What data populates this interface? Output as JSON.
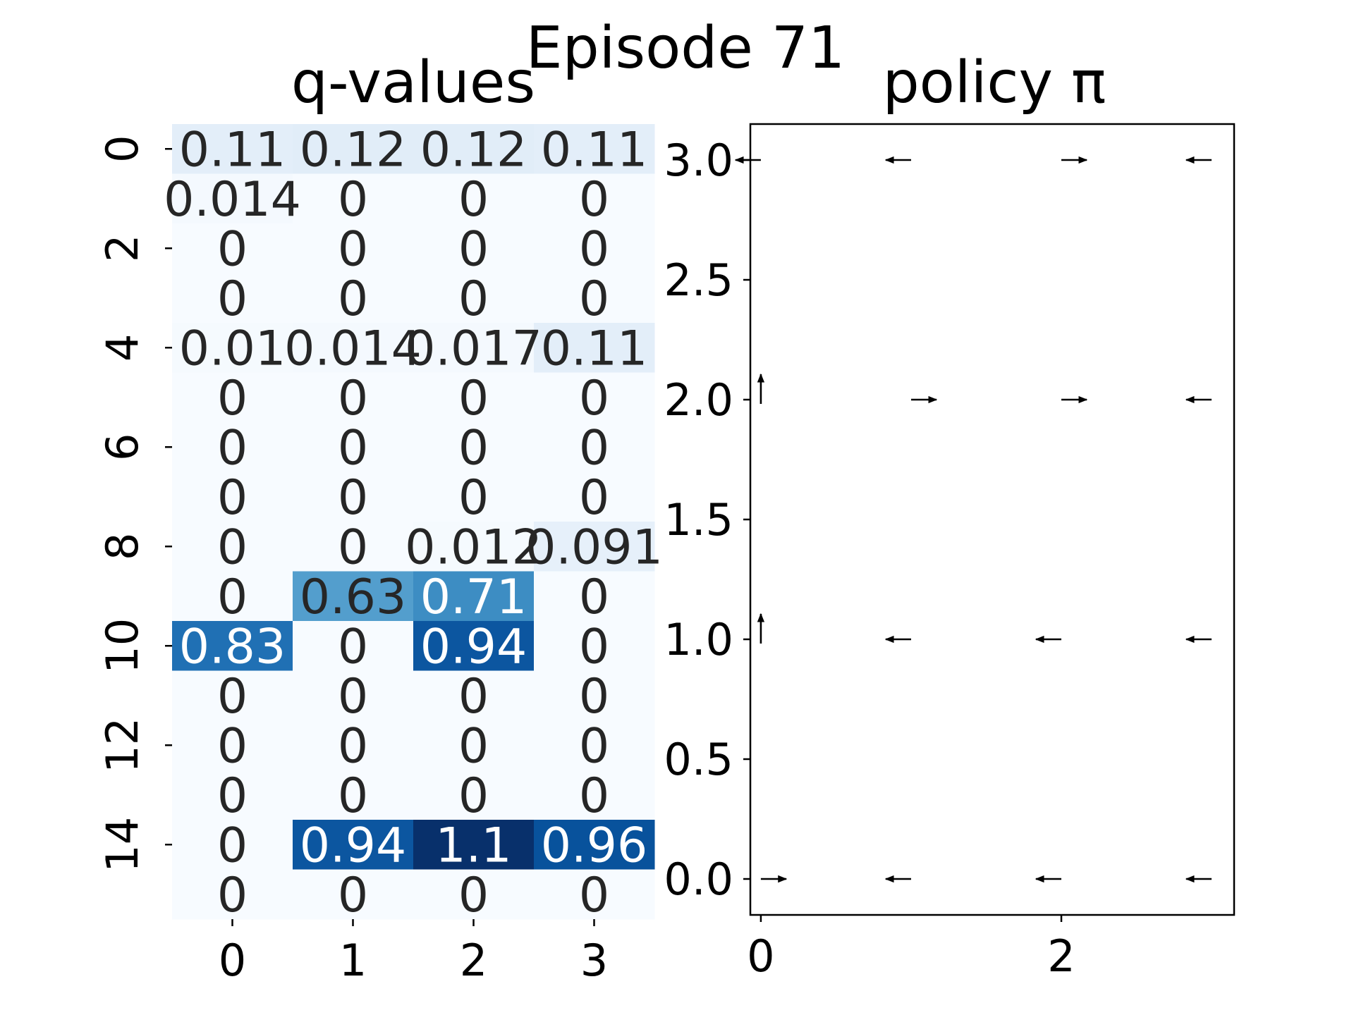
{
  "figure": {
    "suptitle": "Episode 71"
  },
  "chart_data": [
    {
      "type": "heatmap",
      "title": "q-values",
      "x_ticks": [
        "0",
        "1",
        "2",
        "3"
      ],
      "y_ticks": [
        "0",
        "2",
        "4",
        "6",
        "8",
        "10",
        "12",
        "14"
      ],
      "colormap": "Blues",
      "vmin": 0,
      "vmax": 1.1,
      "values": [
        [
          0.11,
          0.12,
          0.12,
          0.11
        ],
        [
          0.014,
          0,
          0,
          0
        ],
        [
          0,
          0,
          0,
          0
        ],
        [
          0,
          0,
          0,
          0
        ],
        [
          0.01,
          0.014,
          0.017,
          0.11
        ],
        [
          0,
          0,
          0,
          0
        ],
        [
          0,
          0,
          0,
          0
        ],
        [
          0,
          0,
          0,
          0
        ],
        [
          0,
          0,
          0.012,
          0.091
        ],
        [
          0,
          0.63,
          0.71,
          0
        ],
        [
          0.83,
          0,
          0.94,
          0
        ],
        [
          0,
          0,
          0,
          0
        ],
        [
          0,
          0,
          0,
          0
        ],
        [
          0,
          0,
          0,
          0
        ],
        [
          0,
          0.94,
          1.1,
          0.96
        ],
        [
          0,
          0,
          0,
          0
        ]
      ],
      "labels": [
        [
          "0.11",
          "0.12",
          "0.12",
          "0.11"
        ],
        [
          "0.014",
          "0",
          "0",
          "0"
        ],
        [
          "0",
          "0",
          "0",
          "0"
        ],
        [
          "0",
          "0",
          "0",
          "0"
        ],
        [
          "0.01",
          "0.014",
          "0.017",
          "0.11"
        ],
        [
          "0",
          "0",
          "0",
          "0"
        ],
        [
          "0",
          "0",
          "0",
          "0"
        ],
        [
          "0",
          "0",
          "0",
          "0"
        ],
        [
          "0",
          "0",
          "0.012",
          "0.091"
        ],
        [
          "0",
          "0.63",
          "0.71",
          "0"
        ],
        [
          "0.83",
          "0",
          "0.94",
          "0"
        ],
        [
          "0",
          "0",
          "0",
          "0"
        ],
        [
          "0",
          "0",
          "0",
          "0"
        ],
        [
          "0",
          "0",
          "0",
          "0"
        ],
        [
          "0",
          "0.94",
          "1.1",
          "0.96"
        ],
        [
          "0",
          "0",
          "0",
          "0"
        ]
      ]
    },
    {
      "type": "quiver",
      "title": "policy π",
      "xlim": [
        -0.07,
        3.15
      ],
      "ylim": [
        -0.15,
        3.15
      ],
      "x_ticks": [
        "0",
        "2"
      ],
      "x_tick_values": [
        0,
        2
      ],
      "y_ticks": [
        "0.0",
        "0.5",
        "1.0",
        "1.5",
        "2.0",
        "2.5",
        "3.0"
      ],
      "y_tick_values": [
        0,
        0.5,
        1.0,
        1.5,
        2.0,
        2.5,
        3.0
      ],
      "arrows": [
        {
          "x": 0,
          "y": 3,
          "dir": "left"
        },
        {
          "x": 1,
          "y": 3,
          "dir": "left"
        },
        {
          "x": 2,
          "y": 3,
          "dir": "right"
        },
        {
          "x": 3,
          "y": 3,
          "dir": "left"
        },
        {
          "x": 0,
          "y": 2,
          "dir": "up"
        },
        {
          "x": 1,
          "y": 2,
          "dir": "right"
        },
        {
          "x": 2,
          "y": 2,
          "dir": "right"
        },
        {
          "x": 3,
          "y": 2,
          "dir": "left"
        },
        {
          "x": 0,
          "y": 1,
          "dir": "up"
        },
        {
          "x": 1,
          "y": 1,
          "dir": "left"
        },
        {
          "x": 2,
          "y": 1,
          "dir": "left"
        },
        {
          "x": 3,
          "y": 1,
          "dir": "left"
        },
        {
          "x": 0,
          "y": 0,
          "dir": "right"
        },
        {
          "x": 1,
          "y": 0,
          "dir": "left"
        },
        {
          "x": 2,
          "y": 0,
          "dir": "left"
        },
        {
          "x": 3,
          "y": 0,
          "dir": "left"
        }
      ]
    }
  ]
}
